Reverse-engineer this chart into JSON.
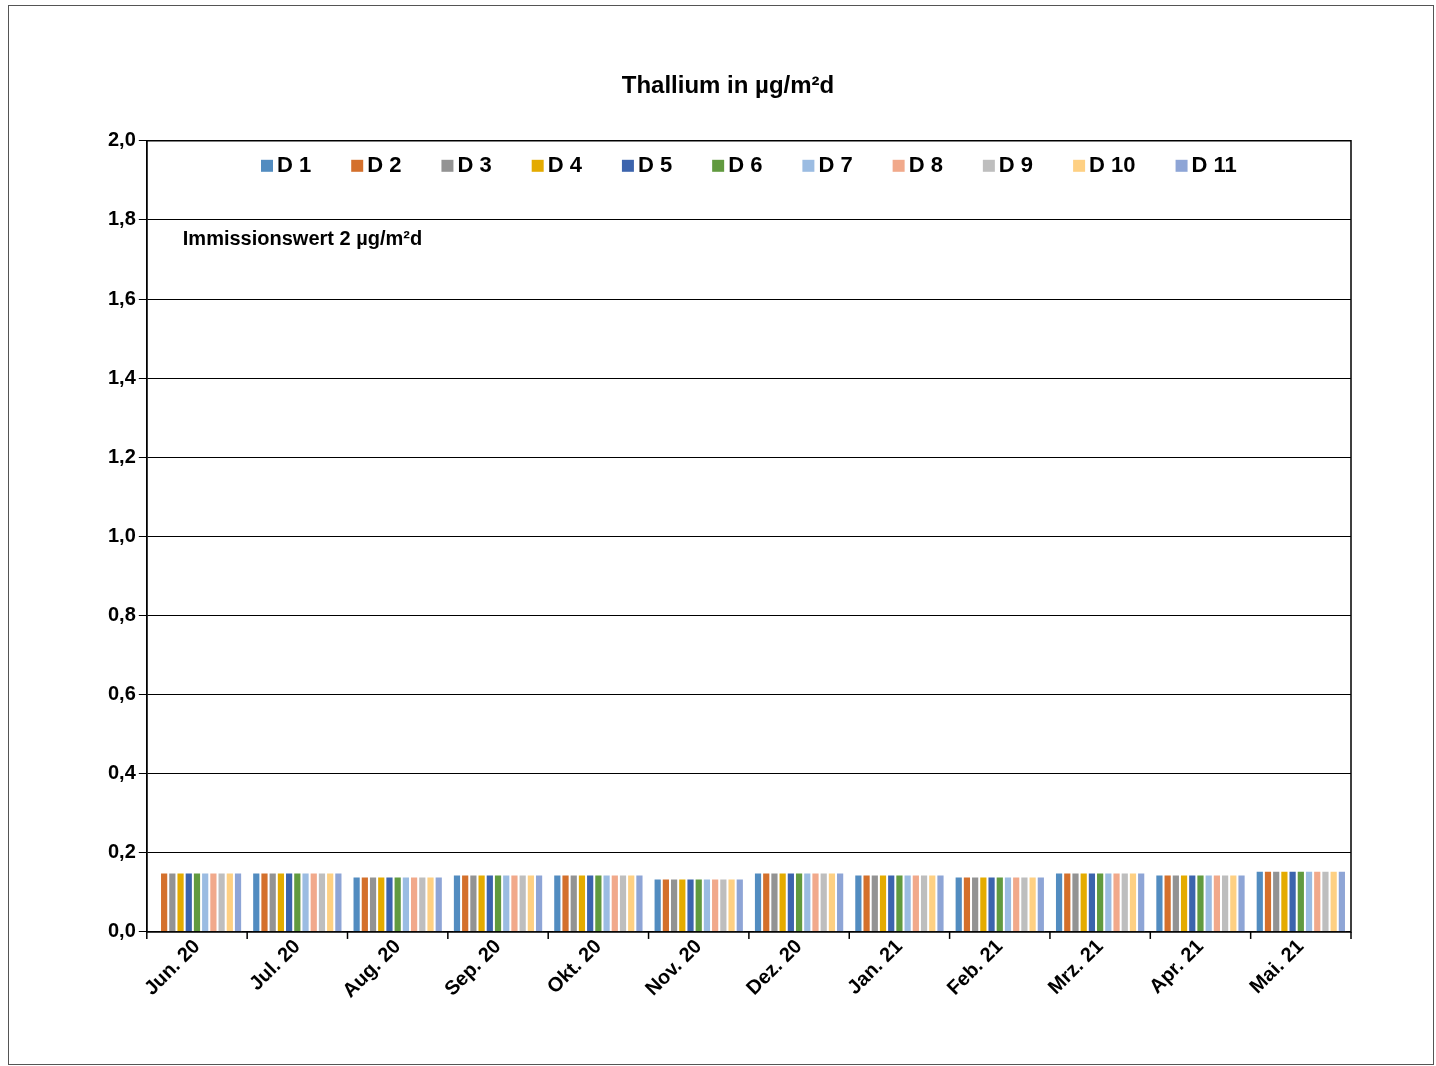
{
  "chart_data": {
    "type": "bar",
    "title": "Thallium in µg/m²d",
    "categories": [
      "Jun. 20",
      "Jul. 20",
      "Aug. 20",
      "Sep. 20",
      "Okt. 20",
      "Nov. 20",
      "Dez. 20",
      "Jan. 21",
      "Feb. 21",
      "Mrz. 21",
      "Apr. 21",
      "Mai. 21"
    ],
    "series": [
      {
        "name": "D 1",
        "color": "#528cc0",
        "values": [
          null,
          0.15,
          0.14,
          0.145,
          0.145,
          0.135,
          0.15,
          0.145,
          0.14,
          0.15,
          0.145,
          0.155
        ]
      },
      {
        "name": "D 2",
        "color": "#d4702c",
        "values": [
          0.15,
          0.15,
          0.14,
          0.145,
          0.145,
          0.135,
          0.15,
          0.145,
          0.14,
          0.15,
          0.145,
          0.155
        ]
      },
      {
        "name": "D 3",
        "color": "#939393",
        "values": [
          0.15,
          0.15,
          0.14,
          0.145,
          0.145,
          0.135,
          0.15,
          0.145,
          0.14,
          0.15,
          0.145,
          0.155
        ]
      },
      {
        "name": "D 4",
        "color": "#e4ab00",
        "values": [
          0.15,
          0.15,
          0.14,
          0.145,
          0.145,
          0.135,
          0.15,
          0.145,
          0.14,
          0.15,
          0.145,
          0.155
        ]
      },
      {
        "name": "D 5",
        "color": "#3c64ad",
        "values": [
          0.15,
          0.15,
          0.14,
          0.145,
          0.145,
          0.135,
          0.15,
          0.145,
          0.14,
          0.15,
          0.145,
          0.155
        ]
      },
      {
        "name": "D 6",
        "color": "#619a3f",
        "values": [
          0.15,
          0.15,
          0.14,
          0.145,
          0.145,
          0.135,
          0.15,
          0.145,
          0.14,
          0.15,
          0.145,
          0.155
        ]
      },
      {
        "name": "D 7",
        "color": "#9bbce2",
        "values": [
          0.15,
          0.15,
          0.14,
          0.145,
          0.145,
          0.135,
          0.15,
          0.145,
          0.14,
          0.15,
          0.145,
          0.155
        ]
      },
      {
        "name": "D 8",
        "color": "#f1a98b",
        "values": [
          0.15,
          0.15,
          0.14,
          0.145,
          0.145,
          0.135,
          0.15,
          0.145,
          0.14,
          0.15,
          0.145,
          0.155
        ]
      },
      {
        "name": "D 9",
        "color": "#bebebe",
        "values": [
          0.15,
          0.15,
          0.14,
          0.145,
          0.145,
          0.135,
          0.15,
          0.145,
          0.14,
          0.15,
          0.145,
          0.155
        ]
      },
      {
        "name": "D 10",
        "color": "#fed083",
        "values": [
          0.15,
          0.15,
          0.14,
          0.145,
          0.145,
          0.135,
          0.15,
          0.145,
          0.14,
          0.15,
          0.145,
          0.155
        ]
      },
      {
        "name": "D 11",
        "color": "#8ea5d6",
        "values": [
          0.15,
          0.15,
          0.14,
          0.145,
          0.145,
          0.135,
          0.15,
          0.145,
          0.14,
          0.15,
          0.145,
          0.155
        ]
      }
    ],
    "ylim": [
      0,
      2
    ],
    "yticks": [
      {
        "value": 0,
        "label": "0,0"
      },
      {
        "value": 0.2,
        "label": "0,2"
      },
      {
        "value": 0.4,
        "label": "0,4"
      },
      {
        "value": 0.6,
        "label": "0,6"
      },
      {
        "value": 0.8,
        "label": "0,8"
      },
      {
        "value": 1,
        "label": "1,0"
      },
      {
        "value": 1.2,
        "label": "1,2"
      },
      {
        "value": 1.4,
        "label": "1,4"
      },
      {
        "value": 1.6,
        "label": "1,6"
      },
      {
        "value": 1.8,
        "label": "1,8"
      },
      {
        "value": 2,
        "label": "2,0"
      }
    ],
    "grid": "y",
    "legend": "top",
    "annotations": [
      "Immissionswert 2 µg/m²d"
    ]
  }
}
